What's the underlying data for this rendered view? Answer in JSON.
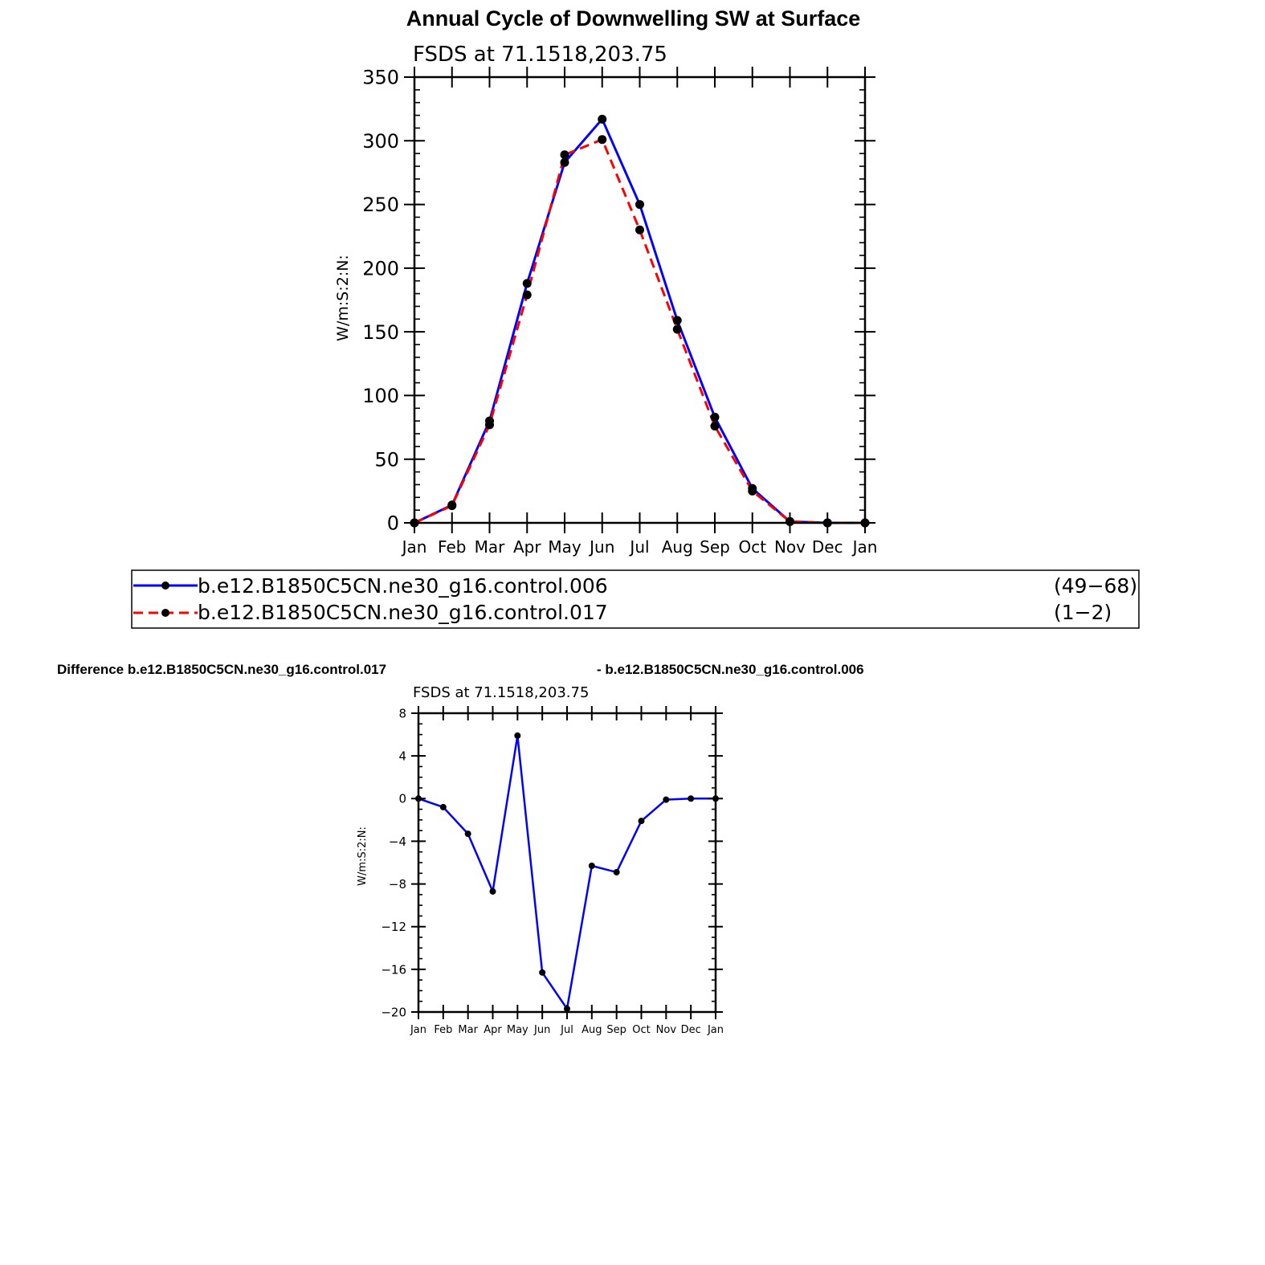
{
  "page_title": "Annual Cycle of Downwelling SW at Surface",
  "difference_header": {
    "left": "Difference b.e12.B1850C5CN.ne30_g16.control.017",
    "right": "- b.e12.B1850C5CN.ne30_g16.control.006"
  },
  "legend": {
    "entries": [
      {
        "label": "b.e12.B1850C5CN.ne30_g16.control.006",
        "years": "(49−68)"
      },
      {
        "label": "b.e12.B1850C5CN.ne30_g16.control.017",
        "years": "(1−2)"
      }
    ]
  },
  "chart_data": [
    {
      "type": "line",
      "title": "FSDS at 71.1518,203.75",
      "ylabel": "W/m:S:2:N:",
      "xlabel": "",
      "categories": [
        "Jan",
        "Feb",
        "Mar",
        "Apr",
        "May",
        "Jun",
        "Jul",
        "Aug",
        "Sep",
        "Oct",
        "Nov",
        "Dec",
        "Jan"
      ],
      "ylim": [
        0,
        350
      ],
      "yticks": [
        0,
        50,
        100,
        150,
        200,
        250,
        300,
        350
      ],
      "series": [
        {
          "name": "b.e12.B1850C5CN.ne30_g16.control.006",
          "color": "#0000ff",
          "dash": "solid",
          "values": [
            0,
            14,
            80,
            188,
            283,
            317,
            250,
            159,
            83,
            27,
            1,
            0,
            0
          ]
        },
        {
          "name": "b.e12.B1850C5CN.ne30_g16.control.017",
          "color": "#ff0000",
          "dash": "dashed",
          "values": [
            0,
            13.5,
            77,
            179,
            289,
            301,
            230,
            152,
            76,
            25,
            1,
            0,
            0
          ]
        }
      ]
    },
    {
      "type": "line",
      "title": "FSDS at 71.1518,203.75",
      "ylabel": "W/m:S:2:N:",
      "xlabel": "",
      "categories": [
        "Jan",
        "Feb",
        "Mar",
        "Apr",
        "May",
        "Jun",
        "Jul",
        "Aug",
        "Sep",
        "Oct",
        "Nov",
        "Dec",
        "Jan"
      ],
      "ylim": [
        -20,
        8
      ],
      "yticks": [
        8,
        4,
        0,
        -4,
        -8,
        -12,
        -16,
        -20
      ],
      "series": [
        {
          "color": "#0000ff",
          "dash": "solid",
          "values": [
            0,
            -0.8,
            -3.3,
            -8.7,
            5.9,
            -16.3,
            -19.7,
            -6.3,
            -6.9,
            -2.1,
            -0.1,
            0,
            0
          ]
        }
      ]
    }
  ]
}
